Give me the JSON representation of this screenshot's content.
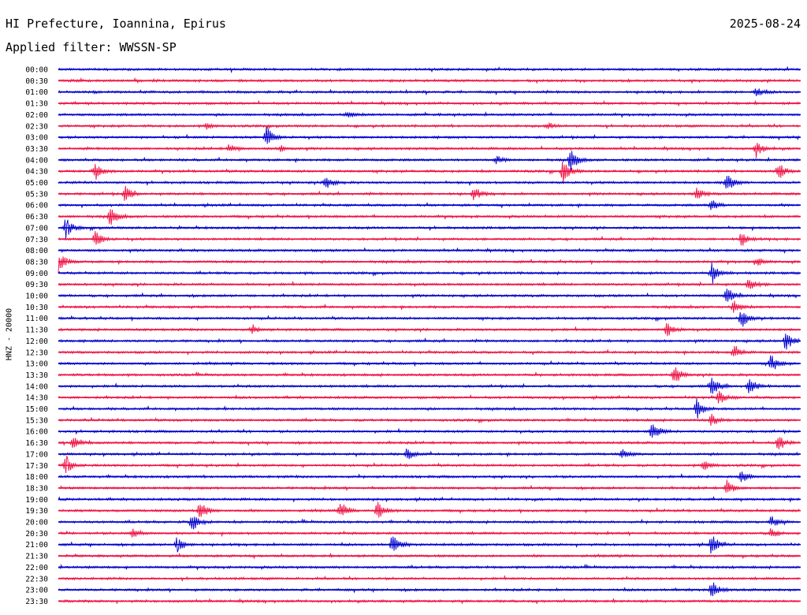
{
  "header": {
    "station": "HI Prefecture, Ioannina, Epirus",
    "date": "2025-08-24",
    "filter": "Applied filter: WWSSN-SP"
  },
  "chart_data": {
    "type": "line",
    "title": "HI Prefecture, Ioannina, Epirus",
    "ylabel": "HNZ - 20000",
    "trace_colors": [
      "#0000cc",
      "#ee1144"
    ],
    "rows": [
      {
        "label": "00:00",
        "events": []
      },
      {
        "label": "00:30",
        "events": []
      },
      {
        "label": "01:00",
        "events": [
          {
            "t": 0.94,
            "a": 0.5
          }
        ]
      },
      {
        "label": "01:30",
        "events": []
      },
      {
        "label": "02:00",
        "events": [
          {
            "t": 0.39,
            "a": 0.3
          }
        ]
      },
      {
        "label": "02:30",
        "events": [
          {
            "t": 0.2,
            "a": 0.3
          },
          {
            "t": 0.66,
            "a": 0.3
          }
        ]
      },
      {
        "label": "03:00",
        "events": [
          {
            "t": 0.28,
            "a": 1.2
          }
        ]
      },
      {
        "label": "03:30",
        "events": [
          {
            "t": 0.23,
            "a": 0.4
          },
          {
            "t": 0.3,
            "a": 0.3
          },
          {
            "t": 0.94,
            "a": 0.9
          }
        ]
      },
      {
        "label": "04:00",
        "events": [
          {
            "t": 0.69,
            "a": 1.2
          },
          {
            "t": 0.59,
            "a": 0.4
          }
        ]
      },
      {
        "label": "04:30",
        "events": [
          {
            "t": 0.05,
            "a": 0.9
          },
          {
            "t": 0.68,
            "a": 1.2
          },
          {
            "t": 0.97,
            "a": 0.9
          }
        ]
      },
      {
        "label": "05:00",
        "events": [
          {
            "t": 0.36,
            "a": 0.9
          },
          {
            "t": 0.9,
            "a": 1.0
          }
        ]
      },
      {
        "label": "05:30",
        "events": [
          {
            "t": 0.09,
            "a": 0.8
          },
          {
            "t": 0.56,
            "a": 0.7
          },
          {
            "t": 0.86,
            "a": 0.6
          }
        ]
      },
      {
        "label": "06:00",
        "events": [
          {
            "t": 0.88,
            "a": 0.6
          }
        ]
      },
      {
        "label": "06:30",
        "events": [
          {
            "t": 0.07,
            "a": 1.0
          }
        ]
      },
      {
        "label": "07:00",
        "events": [
          {
            "t": 0.01,
            "a": 1.0
          }
        ]
      },
      {
        "label": "07:30",
        "events": [
          {
            "t": 0.05,
            "a": 0.9
          },
          {
            "t": 0.92,
            "a": 0.7
          }
        ]
      },
      {
        "label": "08:00",
        "events": []
      },
      {
        "label": "08:30",
        "events": [
          {
            "t": 0.0,
            "a": 1.1
          },
          {
            "t": 0.94,
            "a": 0.5
          }
        ]
      },
      {
        "label": "09:00",
        "events": [
          {
            "t": 0.88,
            "a": 1.0
          }
        ]
      },
      {
        "label": "09:30",
        "events": [
          {
            "t": 0.93,
            "a": 0.7
          }
        ]
      },
      {
        "label": "10:00",
        "events": [
          {
            "t": 0.9,
            "a": 1.0
          }
        ]
      },
      {
        "label": "10:30",
        "events": [
          {
            "t": 0.91,
            "a": 0.6
          }
        ]
      },
      {
        "label": "11:00",
        "events": [
          {
            "t": 0.92,
            "a": 1.0
          }
        ]
      },
      {
        "label": "11:30",
        "events": [
          {
            "t": 0.82,
            "a": 0.8
          },
          {
            "t": 0.26,
            "a": 0.4
          }
        ]
      },
      {
        "label": "12:00",
        "events": [
          {
            "t": 0.98,
            "a": 1.1
          }
        ]
      },
      {
        "label": "12:30",
        "events": [
          {
            "t": 0.91,
            "a": 0.8
          }
        ]
      },
      {
        "label": "13:00",
        "events": [
          {
            "t": 0.96,
            "a": 0.9
          }
        ]
      },
      {
        "label": "13:30",
        "events": [
          {
            "t": 0.83,
            "a": 0.9
          }
        ]
      },
      {
        "label": "14:00",
        "events": [
          {
            "t": 0.88,
            "a": 1.0
          },
          {
            "t": 0.93,
            "a": 0.9
          }
        ]
      },
      {
        "label": "14:30",
        "events": [
          {
            "t": 0.89,
            "a": 0.7
          }
        ]
      },
      {
        "label": "15:00",
        "events": [
          {
            "t": 0.86,
            "a": 1.0
          }
        ]
      },
      {
        "label": "15:30",
        "events": [
          {
            "t": 0.88,
            "a": 0.6
          }
        ]
      },
      {
        "label": "16:00",
        "events": [
          {
            "t": 0.8,
            "a": 1.0
          }
        ]
      },
      {
        "label": "16:30",
        "events": [
          {
            "t": 0.02,
            "a": 0.9
          },
          {
            "t": 0.97,
            "a": 0.8
          }
        ]
      },
      {
        "label": "17:00",
        "events": [
          {
            "t": 0.47,
            "a": 0.6
          },
          {
            "t": 0.76,
            "a": 0.5
          }
        ]
      },
      {
        "label": "17:30",
        "events": [
          {
            "t": 0.01,
            "a": 1.0
          },
          {
            "t": 0.87,
            "a": 0.6
          }
        ]
      },
      {
        "label": "18:00",
        "events": [
          {
            "t": 0.92,
            "a": 0.6
          }
        ]
      },
      {
        "label": "18:30",
        "events": [
          {
            "t": 0.9,
            "a": 0.8
          }
        ]
      },
      {
        "label": "19:00",
        "events": []
      },
      {
        "label": "19:30",
        "events": [
          {
            "t": 0.19,
            "a": 1.2
          },
          {
            "t": 0.38,
            "a": 0.9
          },
          {
            "t": 0.43,
            "a": 0.9
          }
        ]
      },
      {
        "label": "20:00",
        "events": [
          {
            "t": 0.18,
            "a": 1.0
          },
          {
            "t": 0.96,
            "a": 0.6
          }
        ]
      },
      {
        "label": "20:30",
        "events": [
          {
            "t": 0.1,
            "a": 0.5
          },
          {
            "t": 0.96,
            "a": 0.5
          }
        ]
      },
      {
        "label": "21:00",
        "events": [
          {
            "t": 0.16,
            "a": 0.9
          },
          {
            "t": 0.45,
            "a": 1.0
          },
          {
            "t": 0.88,
            "a": 1.0
          }
        ]
      },
      {
        "label": "21:30",
        "events": []
      },
      {
        "label": "22:00",
        "events": []
      },
      {
        "label": "22:30",
        "events": []
      },
      {
        "label": "23:00",
        "events": [
          {
            "t": 0.88,
            "a": 1.0
          }
        ]
      },
      {
        "label": "23:30",
        "events": []
      }
    ]
  }
}
